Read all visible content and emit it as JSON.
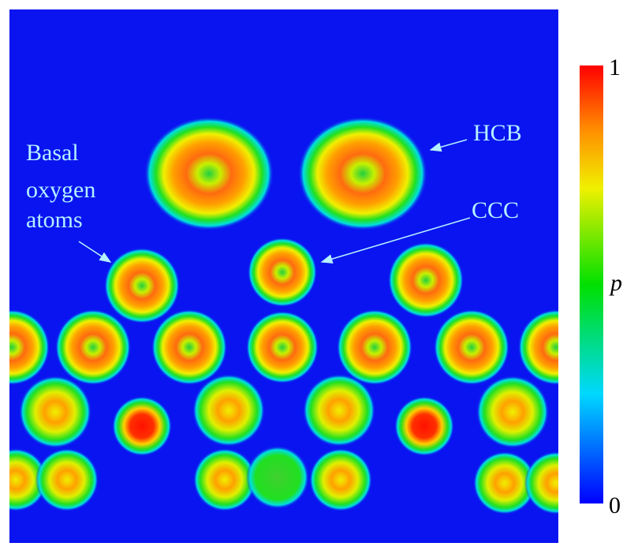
{
  "annotations": {
    "hcb": "HCB",
    "ccc": "CCC",
    "basal": [
      "Basal",
      "oxygen",
      "atoms"
    ]
  },
  "colorbar": {
    "label": "p",
    "ticks": [
      0,
      1
    ]
  }
}
